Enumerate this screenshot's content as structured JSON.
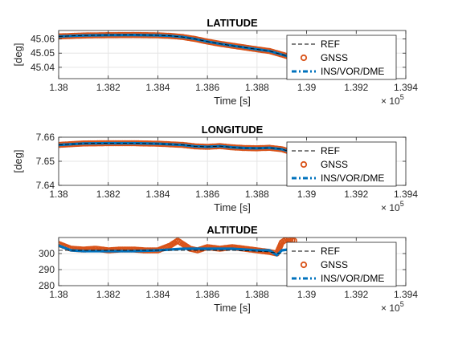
{
  "colors": {
    "ref": "#000000",
    "gnss": "#D95319",
    "ins": "#0072BD",
    "grid": "#E5E5E5",
    "axis": "#262626",
    "background": "#FFFFFF"
  },
  "legend": {
    "placement": "right",
    "entries": [
      "REF",
      "GNSS",
      "INS/VOR/DME"
    ]
  },
  "x_exponent": {
    "base": "× 10",
    "power": "5"
  },
  "chart_data": [
    {
      "type": "line",
      "title": "LATITUDE",
      "xlabel": "Time [s]",
      "ylabel": "[deg]",
      "xlim": [
        1.38,
        1.394
      ],
      "ylim": [
        45.032,
        45.066
      ],
      "xticks": [
        "1.38",
        "1.382",
        "1.384",
        "1.386",
        "1.388",
        "1.39",
        "1.392",
        "1.394"
      ],
      "xtick_values": [
        1.38,
        1.382,
        1.384,
        1.386,
        1.388,
        1.39,
        1.392,
        1.394
      ],
      "yticks": [
        "45.04",
        "45.05",
        "45.06"
      ],
      "ytick_values": [
        45.04,
        45.05,
        45.06
      ],
      "grid": true,
      "series": [
        {
          "name": "REF",
          "style": "dashed",
          "x": [
            1.38,
            1.381,
            1.382,
            1.383,
            1.384,
            1.3845,
            1.385,
            1.3855,
            1.386,
            1.3865,
            1.387,
            1.3875,
            1.388,
            1.3885,
            1.389,
            1.3895
          ],
          "y": [
            45.0618,
            45.0625,
            45.0627,
            45.0628,
            45.0626,
            45.0622,
            45.0614,
            45.06,
            45.0582,
            45.0566,
            45.0553,
            45.054,
            45.0527,
            45.0515,
            45.049,
            45.0465
          ]
        },
        {
          "name": "GNSS",
          "style": "markers",
          "x": [
            1.38,
            1.381,
            1.382,
            1.383,
            1.384,
            1.3845,
            1.385,
            1.3855,
            1.386,
            1.3865,
            1.387,
            1.3875,
            1.388,
            1.3885,
            1.389,
            1.3895
          ],
          "y": [
            45.0618,
            45.0625,
            45.0627,
            45.0628,
            45.0626,
            45.0622,
            45.0614,
            45.06,
            45.0582,
            45.0566,
            45.0553,
            45.054,
            45.0527,
            45.0515,
            45.049,
            45.0465
          ]
        },
        {
          "name": "INS/VOR/DME",
          "style": "dash-dot",
          "x": [
            1.38,
            1.381,
            1.382,
            1.383,
            1.384,
            1.3845,
            1.385,
            1.3855,
            1.386,
            1.3865,
            1.387,
            1.3875,
            1.388,
            1.3885,
            1.389,
            1.3895
          ],
          "y": [
            45.0618,
            45.0625,
            45.0627,
            45.0628,
            45.0626,
            45.0622,
            45.0614,
            45.06,
            45.0582,
            45.0566,
            45.0553,
            45.054,
            45.0527,
            45.0515,
            45.049,
            45.0465
          ]
        }
      ]
    },
    {
      "type": "line",
      "title": "LONGITUDE",
      "xlabel": "Time [s]",
      "ylabel": "[deg]",
      "xlim": [
        1.38,
        1.394
      ],
      "ylim": [
        7.64,
        7.66
      ],
      "xticks": [
        "1.38",
        "1.382",
        "1.384",
        "1.386",
        "1.388",
        "1.39",
        "1.392",
        "1.394"
      ],
      "xtick_values": [
        1.38,
        1.382,
        1.384,
        1.386,
        1.388,
        1.39,
        1.392,
        1.394
      ],
      "yticks": [
        "7.64",
        "7.65",
        "7.66"
      ],
      "ytick_values": [
        7.64,
        7.65,
        7.66
      ],
      "grid": true,
      "series": [
        {
          "name": "REF",
          "style": "dashed",
          "x": [
            1.38,
            1.381,
            1.382,
            1.383,
            1.384,
            1.385,
            1.3855,
            1.386,
            1.3865,
            1.387,
            1.3875,
            1.388,
            1.3885,
            1.389,
            1.3895
          ],
          "y": [
            7.6568,
            7.6574,
            7.6575,
            7.6575,
            7.6573,
            7.6568,
            7.6562,
            7.656,
            7.6563,
            7.6558,
            7.6555,
            7.6554,
            7.6556,
            7.655,
            7.6535
          ]
        },
        {
          "name": "GNSS",
          "style": "markers",
          "x": [
            1.38,
            1.381,
            1.382,
            1.383,
            1.384,
            1.385,
            1.3855,
            1.386,
            1.3865,
            1.387,
            1.3875,
            1.388,
            1.3885,
            1.389,
            1.3895
          ],
          "y": [
            7.6568,
            7.6574,
            7.6575,
            7.6575,
            7.6573,
            7.6568,
            7.6562,
            7.656,
            7.6563,
            7.6558,
            7.6555,
            7.6554,
            7.6556,
            7.655,
            7.6535
          ]
        },
        {
          "name": "INS/VOR/DME",
          "style": "dash-dot",
          "x": [
            1.38,
            1.381,
            1.382,
            1.383,
            1.384,
            1.385,
            1.3855,
            1.386,
            1.3865,
            1.387,
            1.3875,
            1.388,
            1.3885,
            1.389,
            1.3895
          ],
          "y": [
            7.6568,
            7.6574,
            7.6575,
            7.6575,
            7.6573,
            7.6568,
            7.6562,
            7.656,
            7.6563,
            7.6558,
            7.6555,
            7.6554,
            7.6556,
            7.655,
            7.6535
          ]
        }
      ]
    },
    {
      "type": "line",
      "title": "ALTITUDE",
      "xlabel": "Time [s]",
      "ylabel": "",
      "xlim": [
        1.38,
        1.394
      ],
      "ylim": [
        280,
        310
      ],
      "xticks": [
        "1.38",
        "1.382",
        "1.384",
        "1.386",
        "1.388",
        "1.39",
        "1.392",
        "1.394"
      ],
      "xtick_values": [
        1.38,
        1.382,
        1.384,
        1.386,
        1.388,
        1.39,
        1.392,
        1.394
      ],
      "yticks": [
        "280",
        "290",
        "300"
      ],
      "ytick_values": [
        280,
        290,
        300
      ],
      "grid": true,
      "series": [
        {
          "name": "REF",
          "style": "dashed",
          "x": [
            1.38,
            1.381,
            1.382,
            1.383,
            1.384,
            1.385,
            1.386,
            1.387,
            1.388,
            1.3885,
            1.389,
            1.3895
          ],
          "y": [
            302,
            302,
            302,
            302,
            302,
            302,
            302,
            302,
            301.5,
            301,
            300,
            300
          ]
        },
        {
          "name": "GNSS",
          "style": "markers",
          "x": [
            1.38,
            1.3805,
            1.381,
            1.3815,
            1.382,
            1.3825,
            1.383,
            1.3835,
            1.384,
            1.3845,
            1.3848,
            1.385,
            1.3853,
            1.3856,
            1.386,
            1.3865,
            1.387,
            1.3875,
            1.388,
            1.3885,
            1.3888,
            1.389,
            1.3892,
            1.3895
          ],
          "y": [
            306,
            303,
            302.5,
            303,
            302,
            302.5,
            302.5,
            302,
            302,
            305,
            308,
            306,
            303,
            302,
            304,
            303,
            304,
            303,
            302,
            301,
            300,
            307,
            309,
            308
          ]
        },
        {
          "name": "INS/VOR/DME",
          "style": "dash-dot",
          "x": [
            1.38,
            1.3805,
            1.381,
            1.382,
            1.383,
            1.384,
            1.385,
            1.386,
            1.387,
            1.388,
            1.3885,
            1.3888,
            1.389,
            1.3895
          ],
          "y": [
            305,
            302,
            301.5,
            301.5,
            301.5,
            302,
            303,
            303,
            303,
            302,
            302,
            299,
            302,
            303
          ]
        }
      ]
    }
  ]
}
